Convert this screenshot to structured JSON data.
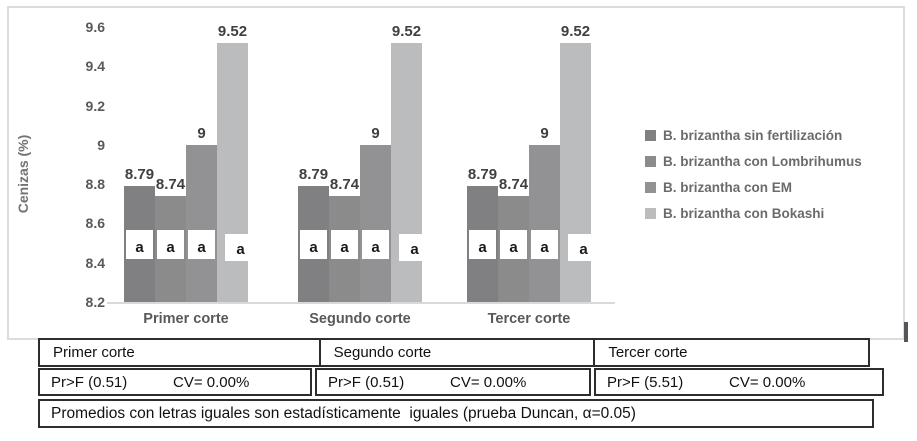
{
  "chart_data": {
    "type": "bar",
    "title": "",
    "ylabel": "Cenizas (%)",
    "categories": [
      "Primer corte",
      "Segundo corte",
      "Tercer corte"
    ],
    "series": [
      {
        "name": "B. brizantha sin fertilización",
        "color": "#808082",
        "values": [
          8.79,
          8.79,
          8.79
        ],
        "label": "8.79"
      },
      {
        "name": "B. brizantha con Lombrihumus",
        "color": "#8b8b8b",
        "values": [
          8.74,
          8.74,
          8.74
        ],
        "label": "8.74"
      },
      {
        "name": "B. brizantha con EM",
        "color": "#929294",
        "values": [
          9,
          9,
          9
        ],
        "label": "9"
      },
      {
        "name": "B. brizantha con Bokashi",
        "color": "#bbbcbe",
        "values": [
          9.52,
          9.52,
          9.52
        ],
        "label": "9.52"
      }
    ],
    "significance_letter": "a",
    "ylim": [
      8.2,
      9.6
    ],
    "yticks": [
      "8.2",
      "8.4",
      "8.6",
      "8.8",
      "9",
      "9.2",
      "9.4",
      "9.6"
    ],
    "legend_position": "right",
    "grid": false
  },
  "table": {
    "header_cells": [
      "Primer corte",
      "Segundo corte",
      "Tercer corte"
    ],
    "stat_cells": [
      {
        "pr": "Pr>F (0.51)",
        "cv": "CV= 0.00%"
      },
      {
        "pr": "Pr>F (0.51)",
        "cv": "CV= 0.00%"
      },
      {
        "pr": "Pr>F (5.51)",
        "cv": "CV= 0.00%"
      }
    ],
    "footer": "Promedios con letras iguales son estadísticamente  iguales (prueba Duncan, α=0.05)"
  }
}
